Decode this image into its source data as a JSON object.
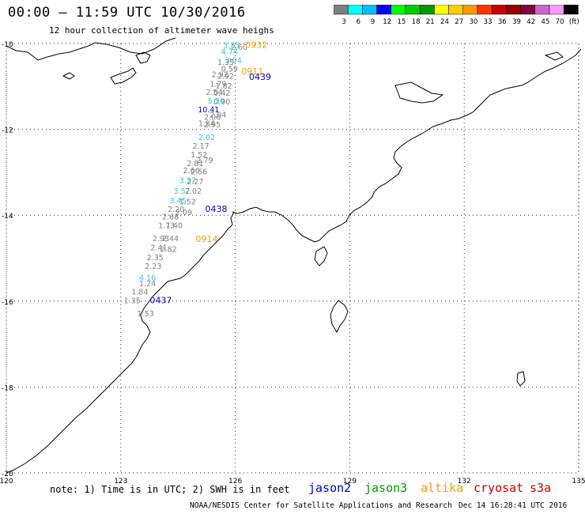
{
  "header": {
    "title": "00:00 – 11:59 UTC 10/30/2016",
    "subtitle": "12 hour collection of altimeter wave heighs"
  },
  "colorbar": {
    "labels": [
      "3",
      "6",
      "9",
      "12",
      "15",
      "18",
      "21",
      "24",
      "27",
      "30",
      "33",
      "36",
      "39",
      "42",
      "45",
      "70",
      "(ft)"
    ],
    "colors": [
      "#7f7f7f",
      "#00ffff",
      "#00bfff",
      "#0000ff",
      "#00ff00",
      "#00cc00",
      "#009900",
      "#ffff00",
      "#ffcc00",
      "#ff9900",
      "#ff3300",
      "#cc0000",
      "#990000",
      "#800040",
      "#cc66cc",
      "#ff99ff",
      "#000000"
    ]
  },
  "axes": {
    "lat_labels": [
      "-10",
      "-12",
      "-14",
      "-16",
      "-18",
      "-20"
    ],
    "lon_labels": [
      "120",
      "123",
      "126",
      "129",
      "132",
      "135"
    ]
  },
  "track_values": [
    {
      "t": "3.23",
      "c": "#33cccc",
      "lon": 125.9,
      "lat": -10.1
    },
    {
      "t": "2.60",
      "c": "#808080",
      "lon": 126.1,
      "lat": -10.15
    },
    {
      "t": "0932",
      "c": "#ff9900",
      "lon": 126.55,
      "lat": -10.1
    },
    {
      "t": "4.74",
      "c": "#33cccc",
      "lon": 125.85,
      "lat": -10.25
    },
    {
      "t": "3.04",
      "c": "#33cccc",
      "lon": 125.95,
      "lat": -10.45
    },
    {
      "t": "1.35",
      "c": "#808080",
      "lon": 125.75,
      "lat": -10.5
    },
    {
      "t": "0.59",
      "c": "#808080",
      "lon": 125.85,
      "lat": -10.65
    },
    {
      "t": "0911",
      "c": "#ff9900",
      "lon": 126.45,
      "lat": -10.72
    },
    {
      "t": "2.92",
      "c": "#808080",
      "lon": 125.6,
      "lat": -10.78
    },
    {
      "t": "2.92",
      "c": "#808080",
      "lon": 125.75,
      "lat": -10.82
    },
    {
      "t": "0439",
      "c": "#0000cc",
      "lon": 126.65,
      "lat": -10.85
    },
    {
      "t": "1.79",
      "c": "#808080",
      "lon": 125.55,
      "lat": -11.0
    },
    {
      "t": "1.82",
      "c": "#808080",
      "lon": 125.7,
      "lat": -11.05
    },
    {
      "t": "2.54",
      "c": "#808080",
      "lon": 125.45,
      "lat": -11.2
    },
    {
      "t": "0.42",
      "c": "#808080",
      "lon": 125.65,
      "lat": -11.22
    },
    {
      "t": "5.30",
      "c": "#33cccc",
      "lon": 125.5,
      "lat": -11.4
    },
    {
      "t": "0.90",
      "c": "#808080",
      "lon": 125.65,
      "lat": -11.42
    },
    {
      "t": "10.41",
      "c": "#0000cc",
      "lon": 125.3,
      "lat": -11.6
    },
    {
      "t": "2.94",
      "c": "#808080",
      "lon": 125.55,
      "lat": -11.72
    },
    {
      "t": "2.06",
      "c": "#808080",
      "lon": 125.4,
      "lat": -11.78
    },
    {
      "t": "1.84",
      "c": "#808080",
      "lon": 125.25,
      "lat": -11.92
    },
    {
      "t": "2.95",
      "c": "#808080",
      "lon": 125.4,
      "lat": -11.95
    },
    {
      "t": "2.02",
      "c": "#33cccc",
      "lon": 125.25,
      "lat": -12.25
    },
    {
      "t": "2.17",
      "c": "#808080",
      "lon": 125.1,
      "lat": -12.45
    },
    {
      "t": "1.52",
      "c": "#808080",
      "lon": 125.05,
      "lat": -12.65
    },
    {
      "t": "2.79",
      "c": "#808080",
      "lon": 125.2,
      "lat": -12.78
    },
    {
      "t": "2.81",
      "c": "#808080",
      "lon": 124.95,
      "lat": -12.85
    },
    {
      "t": "2.66",
      "c": "#808080",
      "lon": 124.85,
      "lat": -13.02
    },
    {
      "t": "2.56",
      "c": "#808080",
      "lon": 125.05,
      "lat": -13.05
    },
    {
      "t": "3.27",
      "c": "#33cccc",
      "lon": 124.75,
      "lat": -13.25
    },
    {
      "t": "2.27",
      "c": "#808080",
      "lon": 124.95,
      "lat": -13.28
    },
    {
      "t": "3.57",
      "c": "#33cccc",
      "lon": 124.6,
      "lat": -13.5
    },
    {
      "t": "2.02",
      "c": "#808080",
      "lon": 124.9,
      "lat": -13.5
    },
    {
      "t": "3.45",
      "c": "#33cccc",
      "lon": 124.5,
      "lat": -13.72
    },
    {
      "t": "1.52",
      "c": "#808080",
      "lon": 124.75,
      "lat": -13.75
    },
    {
      "t": "2.20",
      "c": "#808080",
      "lon": 124.45,
      "lat": -13.92
    },
    {
      "t": "2.09",
      "c": "#808080",
      "lon": 124.65,
      "lat": -14.0
    },
    {
      "t": "0438",
      "c": "#0000cc",
      "lon": 125.5,
      "lat": -13.92
    },
    {
      "t": "2.68",
      "c": "#808080",
      "lon": 124.3,
      "lat": -14.1
    },
    {
      "t": "1.73",
      "c": "#808080",
      "lon": 124.2,
      "lat": -14.3
    },
    {
      "t": "1.40",
      "c": "#808080",
      "lon": 124.4,
      "lat": -14.3
    },
    {
      "t": "2.93",
      "c": "#808080",
      "lon": 124.05,
      "lat": -14.6
    },
    {
      "t": "2.44",
      "c": "#808080",
      "lon": 124.3,
      "lat": -14.6
    },
    {
      "t": "0914",
      "c": "#ff9900",
      "lon": 125.25,
      "lat": -14.62
    },
    {
      "t": "2.41",
      "c": "#808080",
      "lon": 124.0,
      "lat": -14.82
    },
    {
      "t": "2.82",
      "c": "#808080",
      "lon": 124.25,
      "lat": -14.85
    },
    {
      "t": "2.35",
      "c": "#808080",
      "lon": 123.9,
      "lat": -15.05
    },
    {
      "t": "2.23",
      "c": "#808080",
      "lon": 123.85,
      "lat": -15.25
    },
    {
      "t": "4.16",
      "c": "#33cccc",
      "lon": 123.7,
      "lat": -15.52
    },
    {
      "t": "1.24",
      "c": "#808080",
      "lon": 123.7,
      "lat": -15.65
    },
    {
      "t": "1.84",
      "c": "#808080",
      "lon": 123.5,
      "lat": -15.85
    },
    {
      "t": "1.35",
      "c": "#808080",
      "lon": 123.3,
      "lat": -16.05
    },
    {
      "t": "0437",
      "c": "#0000cc",
      "lon": 124.05,
      "lat": -16.05
    },
    {
      "t": "1.53",
      "c": "#808080",
      "lon": 123.65,
      "lat": -16.35
    }
  ],
  "note": "note:  1) Time is in UTC;  2) SWH is in feet",
  "satellites": [
    {
      "name": "jason2",
      "color": "#0000cc"
    },
    {
      "name": "jason3",
      "color": "#009900"
    },
    {
      "name": "altika",
      "color": "#ff9900"
    },
    {
      "name": "cryosat",
      "color": "#cc0000"
    },
    {
      "name": "s3a",
      "color": "#cc0000"
    }
  ],
  "footer": {
    "agency": "NOAA/NESDIS Center for Satellite Applications and Research",
    "date": "Dec 14 16:28:41 UTC 2016"
  }
}
